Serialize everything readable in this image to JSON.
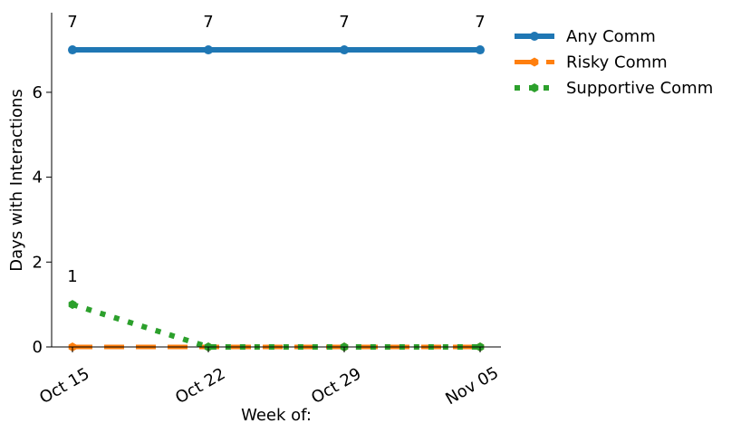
{
  "chart_data": {
    "type": "line",
    "title": "",
    "xlabel": "Week of:",
    "ylabel": "Days with Interactions",
    "categories": [
      "Oct 15",
      "Oct 22",
      "Oct 29",
      "Nov 05"
    ],
    "ylim": [
      0,
      7.85
    ],
    "yticks": [
      0,
      2,
      4,
      6
    ],
    "grid": false,
    "legend_position": "outside-top-right",
    "series": [
      {
        "name": "Any Comm",
        "values": [
          7,
          7,
          7,
          7
        ],
        "color": "#1f77b4",
        "style": "solid",
        "data_labels": [
          "7",
          "7",
          "7",
          "7"
        ]
      },
      {
        "name": "Risky Comm",
        "values": [
          0,
          0,
          0,
          0
        ],
        "color": "#ff7f0e",
        "style": "dashed",
        "data_labels": []
      },
      {
        "name": "Supportive Comm",
        "values": [
          1,
          0,
          0,
          0
        ],
        "color": "#2ca02c",
        "style": "dotted",
        "data_labels": [
          "1"
        ]
      }
    ]
  }
}
